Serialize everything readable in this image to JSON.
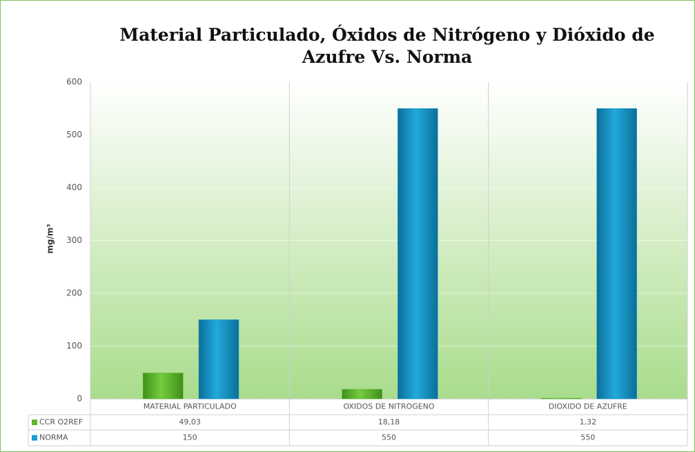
{
  "chart_data": {
    "type": "bar",
    "title": "Material Particulado, Óxidos de Nitrógeno y Dióxido de Azufre Vs. Norma",
    "y_label": "mg/m³",
    "categories": [
      "MATERIAL PARTICULADO",
      "OXIDOS DE NITROGENO",
      "DIOXIDO DE AZUFRE"
    ],
    "series": [
      {
        "name": "CCR O2REF",
        "color": "#5cb82c",
        "values": [
          49.03,
          18.18,
          1.32
        ],
        "value_labels": [
          "49,03",
          "18,18",
          "1,32"
        ]
      },
      {
        "name": "NORMA",
        "color": "#1aa0d2",
        "values": [
          150,
          550,
          550
        ]
      }
    ],
    "ylim": [
      0,
      600
    ],
    "yticks": [
      0,
      100,
      200,
      300,
      400,
      500,
      600
    ],
    "grid": true
  }
}
